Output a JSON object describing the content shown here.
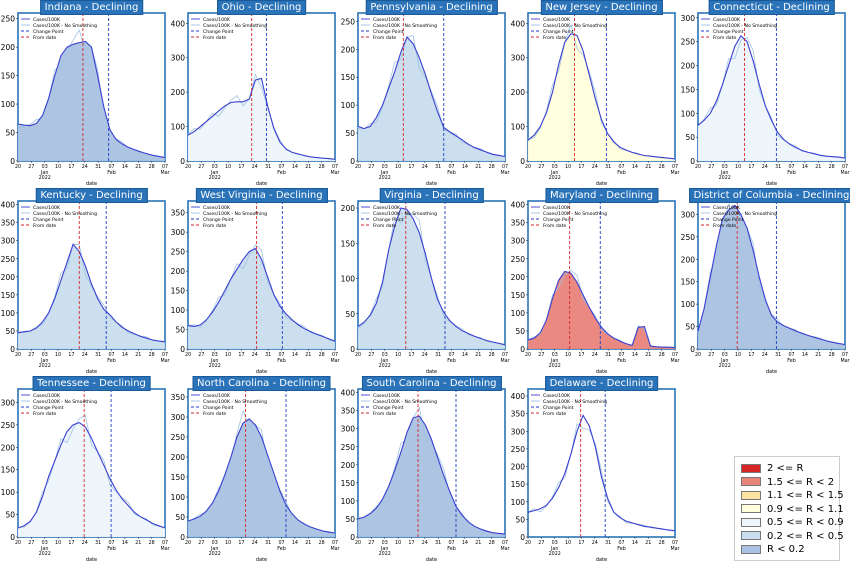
{
  "colors": {
    "line": "#3a3fcf",
    "raw_line": "#9fc3e4",
    "change_point": "#d62728",
    "from_date": "#1f3fc4",
    "title_bg": "#2a73b8",
    "fills": {
      "r_ge_2": "#d62728",
      "r_1_5_to_2": "#e8837a",
      "r_1_1_to_1_5": "#fde3a0",
      "r_0_9_to_1_1": "#ffffdd",
      "r_0_5_to_0_9": "#eef6fb",
      "r_0_2_to_0_5": "#c9ddee",
      "r_lt_0_2": "#a9c1e2"
    }
  },
  "series_legend": [
    "Cases/100K",
    "Cases/100K - No Smoothing",
    "Change Point",
    "From date"
  ],
  "x_tick_labels": [
    "20",
    "27",
    "03",
    "10",
    "17",
    "24",
    "31",
    "07",
    "14",
    "21",
    "28",
    "07"
  ],
  "x_month_labels": [
    {
      "label": "Jan",
      "sub": "2022",
      "at": 2
    },
    {
      "label": "Feb",
      "sub": "",
      "at": 7
    },
    {
      "label": "Mar",
      "sub": "",
      "at": 11
    }
  ],
  "xlabel": "date",
  "legend_box": [
    {
      "label": "2 <= R",
      "fill": "r_ge_2"
    },
    {
      "label": "1.5 <= R < 2",
      "fill": "r_1_5_to_2"
    },
    {
      "label": "1.1 <= R < 1.5",
      "fill": "r_1_1_to_1_5"
    },
    {
      "label": "0.9 <= R < 1.1",
      "fill": "r_0_9_to_1_1"
    },
    {
      "label": "0.5 <= R < 0.9",
      "fill": "r_0_5_to_0_9"
    },
    {
      "label": "0.2 <= R < 0.5",
      "fill": "r_0_2_to_0_5"
    },
    {
      "label": "R < 0.2",
      "fill": "r_lt_0_2"
    }
  ],
  "chart_data": [
    {
      "type": "area",
      "title": "Indiana - Declining",
      "xlabel": "date",
      "ylim": [
        0,
        260
      ],
      "yticks": [
        0,
        50,
        100,
        150,
        200,
        250
      ],
      "fill": "r_lt_0_2",
      "change_point": 5.3,
      "from_date": 7.4,
      "x": [
        0,
        0.5,
        1,
        1.5,
        2,
        2.5,
        3,
        3.5,
        4,
        4.5,
        5,
        5.5,
        6,
        6.5,
        7,
        7.5,
        8,
        8.5,
        9,
        9.5,
        10,
        10.5,
        11,
        11.5,
        12
      ],
      "values": [
        65,
        63,
        62,
        66,
        80,
        110,
        150,
        185,
        200,
        205,
        208,
        210,
        200,
        150,
        95,
        55,
        38,
        30,
        24,
        20,
        16,
        13,
        10,
        8,
        6
      ]
    },
    {
      "type": "area",
      "title": "Ohio - Declining",
      "xlabel": "date",
      "ylim": [
        0,
        430
      ],
      "yticks": [
        0,
        100,
        200,
        300,
        400
      ],
      "fill": "r_0_5_to_0_9",
      "change_point": 5.2,
      "from_date": 6.4,
      "x": [
        0,
        0.5,
        1,
        1.5,
        2,
        2.5,
        3,
        3.5,
        4,
        4.5,
        5,
        5.5,
        6,
        6.5,
        7,
        7.5,
        8,
        8.5,
        9,
        9.5,
        10,
        10.5,
        11,
        11.5,
        12
      ],
      "values": [
        75,
        85,
        100,
        115,
        130,
        145,
        160,
        170,
        172,
        172,
        180,
        235,
        240,
        160,
        95,
        55,
        35,
        25,
        20,
        16,
        12,
        10,
        8,
        7,
        5
      ]
    },
    {
      "type": "area",
      "title": "Pennsylvania - Declining",
      "xlabel": "date",
      "ylim": [
        0,
        265
      ],
      "yticks": [
        0,
        50,
        100,
        150,
        200,
        250
      ],
      "fill": "r_0_2_to_0_5",
      "change_point": 3.7,
      "from_date": 7.0,
      "x": [
        0,
        0.5,
        1,
        1.5,
        2,
        2.5,
        3,
        3.5,
        4,
        4.5,
        5,
        5.5,
        6,
        6.5,
        7,
        7.5,
        8,
        8.5,
        9,
        9.5,
        10,
        10.5,
        11,
        11.5,
        12
      ],
      "values": [
        62,
        58,
        62,
        78,
        100,
        130,
        160,
        195,
        222,
        210,
        185,
        155,
        120,
        88,
        60,
        52,
        45,
        38,
        30,
        24,
        20,
        16,
        12,
        10,
        8
      ]
    },
    {
      "type": "area",
      "title": "New Jersey - Declining",
      "xlabel": "date",
      "ylim": [
        0,
        430
      ],
      "yticks": [
        0,
        100,
        200,
        300,
        400
      ],
      "fill": "r_0_9_to_1_1",
      "change_point": 3.8,
      "from_date": 6.4,
      "x": [
        0,
        0.5,
        1,
        1.5,
        2,
        2.5,
        3,
        3.5,
        4,
        4.5,
        5,
        5.5,
        6,
        6.5,
        7,
        7.5,
        8,
        8.5,
        9,
        9.5,
        10,
        10.5,
        11,
        11.5,
        12
      ],
      "values": [
        60,
        75,
        100,
        140,
        200,
        280,
        345,
        370,
        365,
        320,
        250,
        180,
        120,
        80,
        55,
        40,
        32,
        25,
        20,
        16,
        14,
        12,
        10,
        8,
        6
      ]
    },
    {
      "type": "area",
      "title": "Connecticut - Declining",
      "xlabel": "date",
      "ylim": [
        0,
        310
      ],
      "yticks": [
        0,
        50,
        100,
        150,
        200,
        250,
        300
      ],
      "fill": "r_0_5_to_0_9",
      "change_point": 3.8,
      "from_date": 6.4,
      "x": [
        0,
        0.5,
        1,
        1.5,
        2,
        2.5,
        3,
        3.5,
        4,
        4.5,
        5,
        5.5,
        6,
        6.5,
        7,
        7.5,
        8,
        8.5,
        9,
        9.5,
        10,
        10.5,
        11,
        11.5,
        12
      ],
      "values": [
        75,
        85,
        100,
        125,
        160,
        200,
        240,
        262,
        250,
        210,
        160,
        115,
        85,
        60,
        45,
        35,
        28,
        22,
        18,
        15,
        12,
        10,
        9,
        8,
        6
      ]
    },
    {
      "type": "area",
      "title": "Kentucky - Declining",
      "xlabel": "date",
      "ylim": [
        0,
        410
      ],
      "yticks": [
        0,
        50,
        100,
        150,
        200,
        250,
        300,
        350,
        400
      ],
      "fill": "r_0_2_to_0_5",
      "change_point": 5.0,
      "from_date": 7.2,
      "x": [
        0,
        0.5,
        1,
        1.5,
        2,
        2.5,
        3,
        3.5,
        4,
        4.5,
        5,
        5.5,
        6,
        6.5,
        7,
        7.5,
        8,
        8.5,
        9,
        9.5,
        10,
        10.5,
        11,
        11.5,
        12
      ],
      "values": [
        45,
        48,
        50,
        58,
        75,
        100,
        140,
        190,
        240,
        290,
        270,
        230,
        180,
        140,
        110,
        95,
        75,
        60,
        50,
        42,
        35,
        30,
        25,
        22,
        20
      ]
    },
    {
      "type": "area",
      "title": "West Virginia - Declining",
      "xlabel": "date",
      "ylim": [
        0,
        380
      ],
      "yticks": [
        0,
        50,
        100,
        150,
        200,
        250,
        300,
        350
      ],
      "fill": "r_0_2_to_0_5",
      "change_point": 5.6,
      "from_date": 7.7,
      "x": [
        0,
        0.5,
        1,
        1.5,
        2,
        2.5,
        3,
        3.5,
        4,
        4.5,
        5,
        5.5,
        6,
        6.5,
        7,
        7.5,
        8,
        8.5,
        9,
        9.5,
        10,
        10.5,
        11,
        11.5,
        12
      ],
      "values": [
        60,
        58,
        62,
        75,
        95,
        120,
        150,
        180,
        205,
        230,
        250,
        258,
        230,
        185,
        140,
        110,
        90,
        75,
        62,
        52,
        45,
        38,
        32,
        26,
        20
      ]
    },
    {
      "type": "area",
      "title": "Virginia - Declining",
      "xlabel": "date",
      "ylim": [
        0,
        210
      ],
      "yticks": [
        0,
        50,
        100,
        150,
        200
      ],
      "fill": "r_0_2_to_0_5",
      "change_point": 3.9,
      "from_date": 7.1,
      "x": [
        0,
        0.5,
        1,
        1.5,
        2,
        2.5,
        3,
        3.5,
        4,
        4.5,
        5,
        5.5,
        6,
        6.5,
        7,
        7.5,
        8,
        8.5,
        9,
        9.5,
        10,
        10.5,
        11,
        11.5,
        12
      ],
      "values": [
        32,
        38,
        48,
        65,
        95,
        140,
        175,
        200,
        198,
        185,
        165,
        135,
        100,
        70,
        52,
        40,
        32,
        26,
        22,
        18,
        15,
        12,
        10,
        8,
        6
      ]
    },
    {
      "type": "area",
      "title": "Maryland - Declining",
      "xlabel": "date",
      "ylim": [
        0,
        410
      ],
      "yticks": [
        0,
        50,
        100,
        150,
        200,
        250,
        300,
        350,
        400
      ],
      "fill": "r_1_5_to_2",
      "change_point": 3.4,
      "from_date": 5.9,
      "x": [
        0,
        0.5,
        1,
        1.5,
        2,
        2.5,
        3,
        3.5,
        4,
        4.5,
        5,
        5.5,
        6,
        6.5,
        7,
        7.5,
        8,
        8.5,
        9,
        9.5,
        10,
        10.5,
        11,
        11.5,
        12
      ],
      "values": [
        25,
        30,
        45,
        80,
        140,
        190,
        215,
        210,
        185,
        150,
        115,
        85,
        60,
        42,
        30,
        22,
        15,
        10,
        60,
        62,
        8,
        6,
        5,
        5,
        4
      ]
    },
    {
      "type": "area",
      "title": "District of Columbia - Declining",
      "xlabel": "date",
      "ylim": [
        0,
        330
      ],
      "yticks": [
        0,
        50,
        100,
        150,
        200,
        250,
        300
      ],
      "fill": "r_lt_0_2",
      "change_point": 3.2,
      "from_date": 6.4,
      "x": [
        0,
        0.5,
        1,
        1.5,
        2,
        2.5,
        3,
        3.5,
        4,
        4.5,
        5,
        5.5,
        6,
        6.5,
        7,
        7.5,
        8,
        8.5,
        9,
        9.5,
        10,
        10.5,
        11,
        11.5,
        12
      ],
      "values": [
        40,
        90,
        160,
        230,
        290,
        310,
        320,
        300,
        270,
        220,
        160,
        110,
        75,
        60,
        52,
        46,
        40,
        35,
        30,
        26,
        22,
        18,
        15,
        12,
        10
      ]
    },
    {
      "type": "area",
      "title": "Tennessee - Declining",
      "xlabel": "date",
      "ylim": [
        0,
        330
      ],
      "yticks": [
        0,
        50,
        100,
        150,
        200,
        250,
        300
      ],
      "fill": "r_0_5_to_0_9",
      "change_point": 5.4,
      "from_date": 7.6,
      "x": [
        0,
        0.5,
        1,
        1.5,
        2,
        2.5,
        3,
        3.5,
        4,
        4.5,
        5,
        5.5,
        6,
        6.5,
        7,
        7.5,
        8,
        8.5,
        9,
        9.5,
        10,
        10.5,
        11,
        11.5,
        12
      ],
      "values": [
        20,
        25,
        35,
        55,
        90,
        135,
        170,
        205,
        235,
        250,
        255,
        245,
        220,
        190,
        160,
        130,
        105,
        85,
        70,
        55,
        45,
        38,
        30,
        25,
        20
      ]
    },
    {
      "type": "area",
      "title": "North Carolina - Declining",
      "xlabel": "date",
      "ylim": [
        0,
        370
      ],
      "yticks": [
        0,
        50,
        100,
        150,
        200,
        250,
        300,
        350
      ],
      "fill": "r_lt_0_2",
      "change_point": 4.7,
      "from_date": 8.0,
      "x": [
        0,
        0.5,
        1,
        1.5,
        2,
        2.5,
        3,
        3.5,
        4,
        4.5,
        5,
        5.5,
        6,
        6.5,
        7,
        7.5,
        8,
        8.5,
        9,
        9.5,
        10,
        10.5,
        11,
        11.5,
        12
      ],
      "values": [
        40,
        45,
        52,
        65,
        85,
        115,
        155,
        200,
        250,
        285,
        295,
        280,
        250,
        205,
        160,
        115,
        80,
        58,
        42,
        32,
        25,
        20,
        15,
        12,
        10
      ]
    },
    {
      "type": "area",
      "title": "South Carolina - Declining",
      "xlabel": "date",
      "ylim": [
        0,
        410
      ],
      "yticks": [
        0,
        50,
        100,
        150,
        200,
        250,
        300,
        350,
        400
      ],
      "fill": "r_lt_0_2",
      "change_point": 4.9,
      "from_date": 8.0,
      "x": [
        0,
        0.5,
        1,
        1.5,
        2,
        2.5,
        3,
        3.5,
        4,
        4.5,
        5,
        5.5,
        6,
        6.5,
        7,
        7.5,
        8,
        8.5,
        9,
        9.5,
        10,
        10.5,
        11,
        11.5,
        12
      ],
      "values": [
        50,
        55,
        65,
        80,
        105,
        140,
        185,
        235,
        290,
        330,
        335,
        310,
        270,
        220,
        170,
        125,
        85,
        60,
        42,
        30,
        22,
        16,
        12,
        10,
        8
      ]
    },
    {
      "type": "line",
      "title": "Delaware - Declining",
      "xlabel": "date",
      "ylim": [
        0,
        420
      ],
      "yticks": [
        0,
        50,
        100,
        150,
        200,
        250,
        300,
        350,
        400
      ],
      "fill": "",
      "change_point": 4.3,
      "from_date": 6.3,
      "x": [
        0,
        0.5,
        1,
        1.5,
        2,
        2.5,
        3,
        3.5,
        4,
        4.5,
        5,
        5.5,
        6,
        6.5,
        7,
        7.5,
        8,
        8.5,
        9,
        9.5,
        10,
        10.5,
        11,
        11.5,
        12
      ],
      "values": [
        70,
        75,
        80,
        90,
        110,
        140,
        180,
        235,
        300,
        345,
        315,
        255,
        170,
        110,
        70,
        55,
        45,
        40,
        35,
        30,
        28,
        25,
        22,
        20,
        18
      ]
    }
  ]
}
